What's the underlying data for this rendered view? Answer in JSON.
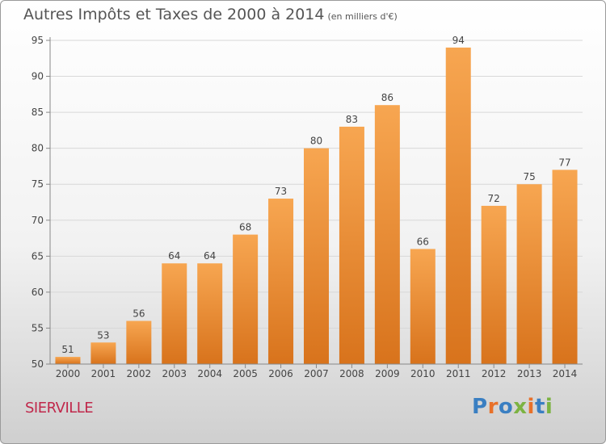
{
  "header": {
    "title": "Autres Impôts et Taxes de 2000 à 2014",
    "unit_note": "(en milliers d'€)"
  },
  "commune": "SIERVILLE",
  "brand": {
    "text": "Proxiti",
    "letter_colors": [
      "#3a7fc2",
      "#e8712a",
      "#3a7fc2",
      "#7cb342",
      "#e8712a",
      "#3a7fc2",
      "#7cb342"
    ]
  },
  "chart_data": {
    "type": "bar",
    "title": "Autres Impôts et Taxes de 2000 à 2014",
    "xlabel": "",
    "ylabel": "",
    "categories": [
      "2000",
      "2001",
      "2002",
      "2003",
      "2004",
      "2005",
      "2006",
      "2007",
      "2008",
      "2009",
      "2010",
      "2011",
      "2012",
      "2013",
      "2014"
    ],
    "values": [
      51,
      53,
      56,
      64,
      64,
      68,
      73,
      80,
      83,
      86,
      66,
      94,
      72,
      75,
      77
    ],
    "ylim": [
      50,
      95
    ],
    "yticks": [
      50,
      55,
      60,
      65,
      70,
      75,
      80,
      85,
      90,
      95
    ],
    "grid": true,
    "colors": {
      "bar_light": "#f7a651",
      "bar_dark": "#d8731c",
      "grid": "#d8d8d8",
      "axis": "#888888",
      "text": "#444444"
    }
  }
}
